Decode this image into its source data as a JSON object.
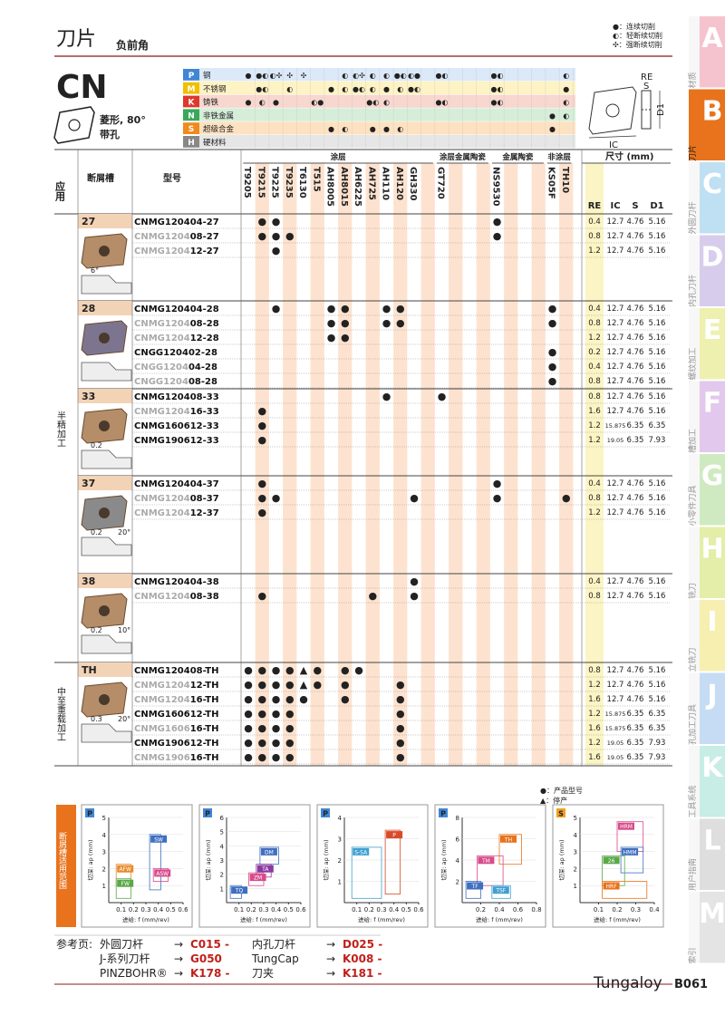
{
  "header": {
    "title": "刀片",
    "subtitle": "负前角",
    "legend": [
      "●：连续切削",
      "◐：轻断续切削",
      "✣：强断续切削"
    ]
  },
  "shape": {
    "code": "CN",
    "desc": [
      "菱形, 80°",
      "带孔"
    ]
  },
  "materials": [
    {
      "letter": "P",
      "name": "钢",
      "color": "#3f86d6",
      "bg": "#dbe9f8",
      "marks": {
        "T9205": "●",
        "T9215": "●◐",
        "T9225": "◐✣",
        "T9235": "✣",
        "T6130": "✣",
        "AH8015": "◐",
        "AH6225": "◐✣",
        "AH725": "◐",
        "AH110": "◐",
        "AH120": "●◐",
        "GH330": "◐●",
        "GT720": "●◐",
        "NS9530": "●◐",
        "TH10": "◐"
      }
    },
    {
      "letter": "M",
      "name": "不锈钢",
      "color": "#f0c000",
      "bg": "#fdf3c4",
      "marks": {
        "T9215": "●◐",
        "T9235": "◐",
        "AH8005": "●",
        "AH8015": "◐",
        "AH6225": "●◐",
        "AH725": "◐",
        "AH110": "●",
        "AH120": "◐",
        "GH330": "●◐",
        "NS9530": "●◐",
        "TH10": "●"
      }
    },
    {
      "letter": "K",
      "name": "铸铁",
      "color": "#dc3a2c",
      "bg": "#f7d7cf",
      "marks": {
        "T9205": "●",
        "T9215": "◐",
        "T9225": "●",
        "T515": "◐●",
        "AH725": "●◐",
        "AH110": "◐",
        "GT720": "●◐",
        "NS9530": "●◐",
        "TH10": "◐"
      }
    },
    {
      "letter": "N",
      "name": "非铁金属",
      "color": "#3aa85a",
      "bg": "#d6eed9",
      "marks": {
        "KS05F": "●",
        "TH10": "◐"
      }
    },
    {
      "letter": "S",
      "name": "超级合金",
      "color": "#f08a1e",
      "bg": "#fde2c2",
      "marks": {
        "AH8005": "●",
        "AH8015": "◐",
        "AH725": "●",
        "AH110": "●",
        "AH120": "◐",
        "KS05F": "●"
      }
    },
    {
      "letter": "H",
      "name": "硬材料",
      "color": "#888888",
      "bg": "#e6e6e6",
      "marks": {}
    }
  ],
  "dimension_labels": [
    "RE",
    "S",
    "D1",
    "IC"
  ],
  "columns": {
    "application": "应用",
    "chipbreaker": "断屑槽",
    "model": "型号",
    "size": "尺寸 (mm)",
    "dims": [
      "RE",
      "IC",
      "S",
      "D1"
    ]
  },
  "grade_groups": [
    {
      "name": "涂层",
      "grades": [
        "T9205",
        "T9215",
        "T9225",
        "T9235",
        "T6130",
        "T515",
        "AH8005",
        "AH8015",
        "AH6225",
        "AH725",
        "AH110",
        "AH120",
        "GH330",
        null
      ]
    },
    {
      "name": "涂层金属陶瓷",
      "grades": [
        "GT720",
        null,
        null,
        null
      ]
    },
    {
      "name": "金属陶瓷",
      "grades": [
        "NS9530",
        null,
        null,
        null
      ]
    },
    {
      "name": "非涂层",
      "grades": [
        "KS05F",
        "TH10"
      ]
    }
  ],
  "applications": [
    {
      "label": "半精加工",
      "chipbreakers": [
        {
          "name": "27",
          "profile_labels": [
            "6°"
          ],
          "rows": [
            {
              "model": [
                "CNMG120404-27"
              ],
              "marks": {
                "T9215": "●",
                "T9225": "●",
                "NS9530": "●"
              },
              "dims": [
                0.4,
                12.7,
                4.76,
                5.16
              ]
            },
            {
              "model": [
                "CNMG1204",
                "08-27"
              ],
              "marks": {
                "T9215": "●",
                "T9225": "●",
                "T9235": "●",
                "NS9530": "●"
              },
              "dims": [
                0.8,
                12.7,
                4.76,
                5.16
              ]
            },
            {
              "model": [
                "CNMG1204",
                "12-27"
              ],
              "marks": {
                "T9225": "●"
              },
              "dims": [
                1.2,
                12.7,
                4.76,
                5.16
              ]
            }
          ]
        },
        {
          "name": "28",
          "profile_labels": [],
          "rows": [
            {
              "model": [
                "CNMG120404-28"
              ],
              "marks": {
                "T9225": "●",
                "AH8005": "●",
                "AH8015": "●",
                "AH110": "●",
                "AH120": "●",
                "KS05F": "●"
              },
              "dims": [
                0.4,
                12.7,
                4.76,
                5.16
              ]
            },
            {
              "model": [
                "CNMG1204",
                "08-28"
              ],
              "marks": {
                "AH8005": "●",
                "AH8015": "●",
                "AH110": "●",
                "AH120": "●",
                "KS05F": "●"
              },
              "dims": [
                0.8,
                12.7,
                4.76,
                5.16
              ]
            },
            {
              "model": [
                "CNMG1204",
                "12-28"
              ],
              "marks": {
                "AH8005": "●",
                "AH8015": "●"
              },
              "dims": [
                1.2,
                12.7,
                4.76,
                5.16
              ]
            },
            {
              "model": [
                "CNGG120402-28"
              ],
              "marks": {
                "KS05F": "●"
              },
              "dims": [
                0.2,
                12.7,
                4.76,
                5.16
              ]
            },
            {
              "model": [
                "CNGG1204",
                "04-28"
              ],
              "marks": {
                "KS05F": "●"
              },
              "dims": [
                0.4,
                12.7,
                4.76,
                5.16
              ]
            },
            {
              "model": [
                "CNGG1204",
                "08-28"
              ],
              "marks": {
                "KS05F": "●"
              },
              "dims": [
                0.8,
                12.7,
                4.76,
                5.16
              ]
            }
          ]
        },
        {
          "name": "33",
          "profile_labels": [
            "0.2"
          ],
          "rows": [
            {
              "model": [
                "CNMG120408-33"
              ],
              "marks": {
                "AH110": "●",
                "GT720": "●"
              },
              "dims": [
                0.8,
                12.7,
                4.76,
                5.16
              ]
            },
            {
              "model": [
                "CNMG1204",
                "16-33"
              ],
              "marks": {
                "T9215": "●"
              },
              "dims": [
                1.6,
                12.7,
                4.76,
                5.16
              ]
            },
            {
              "model": [
                "CNMG160612-33"
              ],
              "marks": {
                "T9215": "●"
              },
              "dims": [
                1.2,
                15.875,
                6.35,
                6.35
              ]
            },
            {
              "model": [
                "CNMG190612-33"
              ],
              "marks": {
                "T9215": "●"
              },
              "dims": [
                1.2,
                19.05,
                6.35,
                7.93
              ]
            }
          ]
        },
        {
          "name": "37",
          "profile_labels": [
            "0.2",
            "20°"
          ],
          "rows": [
            {
              "model": [
                "CNMG120404-37"
              ],
              "marks": {
                "T9215": "●",
                "NS9530": "●"
              },
              "dims": [
                0.4,
                12.7,
                4.76,
                5.16
              ]
            },
            {
              "model": [
                "CNMG1204",
                "08-37"
              ],
              "marks": {
                "T9215": "●",
                "T9225": "●",
                "GH330": "●",
                "NS9530": "●",
                "TH10": "●"
              },
              "dims": [
                0.8,
                12.7,
                4.76,
                5.16
              ]
            },
            {
              "model": [
                "CNMG1204",
                "12-37"
              ],
              "marks": {
                "T9215": "●"
              },
              "dims": [
                1.2,
                12.7,
                4.76,
                5.16
              ]
            }
          ]
        },
        {
          "name": "38",
          "profile_labels": [
            "0.2",
            "10°"
          ],
          "rows": [
            {
              "model": [
                "CNMG120404-38"
              ],
              "marks": {
                "GH330": "●"
              },
              "dims": [
                0.4,
                12.7,
                4.76,
                5.16
              ]
            },
            {
              "model": [
                "CNMG1204",
                "08-38"
              ],
              "marks": {
                "T9215": "●",
                "AH725": "●",
                "GH330": "●"
              },
              "dims": [
                0.8,
                12.7,
                4.76,
                5.16
              ]
            }
          ]
        }
      ]
    },
    {
      "label": "中至重载加工",
      "chipbreakers": [
        {
          "name": "TH",
          "profile_labels": [
            "0.3",
            "20°"
          ],
          "rows": [
            {
              "model": [
                "CNMG120408-TH"
              ],
              "marks": {
                "T9205": "●",
                "T9215": "●",
                "T9225": "●",
                "T9235": "●",
                "T6130": "▲",
                "T515": "●",
                "AH8015": "●",
                "AH6225": "●"
              },
              "dims": [
                0.8,
                12.7,
                4.76,
                5.16
              ]
            },
            {
              "model": [
                "CNMG1204",
                "12-TH"
              ],
              "marks": {
                "T9205": "●",
                "T9215": "●",
                "T9225": "●",
                "T9235": "●",
                "T6130": "▲",
                "T515": "●",
                "AH8015": "●",
                "AH120": "●"
              },
              "dims": [
                1.2,
                12.7,
                4.76,
                5.16
              ]
            },
            {
              "model": [
                "CNMG1204",
                "16-TH"
              ],
              "marks": {
                "T9205": "●",
                "T9215": "●",
                "T9225": "●",
                "T9235": "●",
                "T6130": "●",
                "AH8015": "●",
                "AH120": "●"
              },
              "dims": [
                1.6,
                12.7,
                4.76,
                5.16
              ]
            },
            {
              "model": [
                "CNMG160612-TH"
              ],
              "marks": {
                "T9205": "●",
                "T9215": "●",
                "T9225": "●",
                "T9235": "●",
                "AH120": "●"
              },
              "dims": [
                1.2,
                15.875,
                6.35,
                6.35
              ]
            },
            {
              "model": [
                "CNMG1606",
                "16-TH"
              ],
              "marks": {
                "T9205": "●",
                "T9215": "●",
                "T9225": "●",
                "T9235": "●",
                "AH120": "●"
              },
              "dims": [
                1.6,
                15.875,
                6.35,
                6.35
              ]
            },
            {
              "model": [
                "CNMG190612-TH"
              ],
              "marks": {
                "T9205": "●",
                "T9215": "●",
                "T9225": "●",
                "T9235": "●",
                "AH120": "●"
              },
              "dims": [
                1.2,
                19.05,
                6.35,
                7.93
              ]
            },
            {
              "model": [
                "CNMG1906",
                "16-TH"
              ],
              "marks": {
                "T9205": "●",
                "T9215": "●",
                "T9225": "●",
                "T9235": "●",
                "AH120": "●"
              },
              "dims": [
                1.6,
                19.05,
                6.35,
                7.93
              ]
            }
          ]
        }
      ]
    }
  ],
  "footnotes": [
    "●：产品型号",
    "▲：停产"
  ],
  "chart_section": "断屑槽适用范围",
  "charts": [
    {
      "badge": "P",
      "ylabel": "切深: ap (mm)",
      "xlabel": "进给: f (mm/rev)",
      "yticks": [
        1,
        2,
        3,
        4,
        5
      ],
      "xticks": [
        0.1,
        0.2,
        0.3,
        0.4,
        0.5,
        0.6
      ],
      "regions": [
        "SW",
        "AFW",
        "FW",
        "ASW"
      ]
    },
    {
      "badge": "P",
      "ylabel": "切深: ap (mm)",
      "xlabel": "进给: f (mm/rev)",
      "yticks": [
        1,
        2,
        3,
        4,
        5,
        6
      ],
      "xticks": [
        0.1,
        0.2,
        0.3,
        0.4,
        0.5,
        0.6
      ],
      "regions": [
        "DM",
        "TA",
        "ZM",
        "TQ"
      ]
    },
    {
      "badge": "P",
      "ylabel": "切深: ap (mm)",
      "xlabel": "进给: f (mm/rev)",
      "yticks": [
        1,
        2,
        3,
        4
      ],
      "xticks": [
        0.1,
        0.2,
        0.3,
        0.4,
        0.5,
        0.6
      ],
      "regions": [
        "P",
        "S-SA"
      ]
    },
    {
      "badge": "P",
      "ylabel": "切深: ap (mm)",
      "xlabel": "进给: f (mm/rev)",
      "yticks": [
        2,
        4,
        6,
        8
      ],
      "xticks": [
        0.2,
        0.4,
        0.6,
        0.8
      ],
      "regions": [
        "TH",
        "TM",
        "TF",
        "TSF"
      ]
    },
    {
      "badge": "S",
      "ylabel": "切深: ap (mm)",
      "xlabel": "进给: f (mm/rev)",
      "yticks": [
        1,
        2,
        3,
        4,
        5
      ],
      "xticks": [
        0.1,
        0.2,
        0.3,
        0.4
      ],
      "regions": [
        "HRM",
        "HMM",
        "26",
        "HRF"
      ]
    }
  ],
  "reference": {
    "label": "参考页:",
    "items": [
      {
        "name": "外圆刀杆",
        "page": "C015 -"
      },
      {
        "name": "J-系列刀杆",
        "page": "G050"
      },
      {
        "name": "PINZBOHR®",
        "page": "K178 -"
      },
      {
        "name": "内孔刀杆",
        "page": "D025 -"
      },
      {
        "name": "TungCap",
        "page": "K008 -"
      },
      {
        "name": "刀夹",
        "page": "K181 -"
      }
    ]
  },
  "footer": {
    "brand": "Tungaloy",
    "page": "B061"
  },
  "tabs": [
    {
      "letter": "A",
      "label": "材质"
    },
    {
      "letter": "B",
      "label": "刀片"
    },
    {
      "letter": "C",
      "label": "外圆刀杆"
    },
    {
      "letter": "D",
      "label": "内孔刀杆"
    },
    {
      "letter": "E",
      "label": "螺纹加工"
    },
    {
      "letter": "F",
      "label": "槽加工"
    },
    {
      "letter": "G",
      "label": "小零件刀具"
    },
    {
      "letter": "H",
      "label": "铣刀"
    },
    {
      "letter": "I",
      "label": "立铣刀"
    },
    {
      "letter": "J",
      "label": "孔加工刀具"
    },
    {
      "letter": "K",
      "label": "工具系统"
    },
    {
      "letter": "L",
      "label": "用户指南"
    },
    {
      "letter": "M",
      "label": "索引"
    }
  ]
}
